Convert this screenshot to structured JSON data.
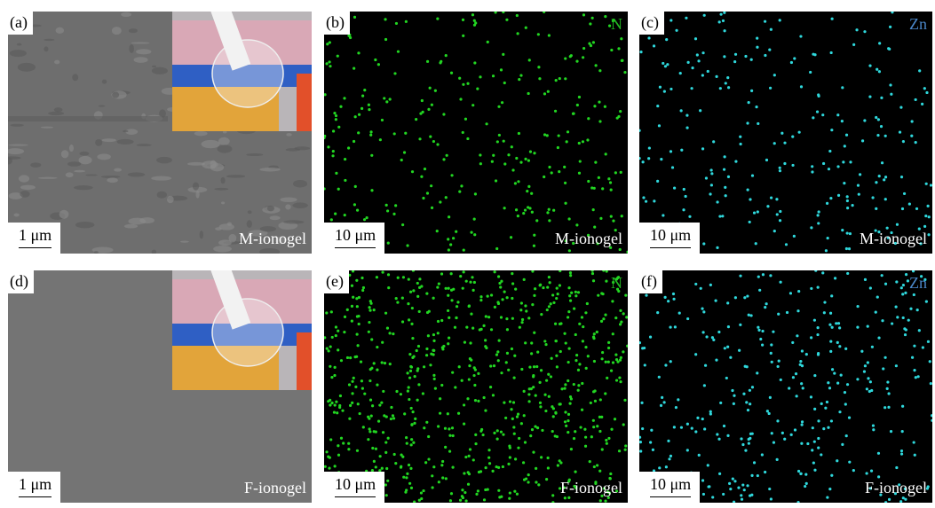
{
  "panels": [
    {
      "label": "(a)",
      "scale_bar": "1 μm",
      "sample": "M-ionogel"
    },
    {
      "label": "(b)",
      "scale_bar": "10 μm",
      "sample": "M-ionogel",
      "element": "N"
    },
    {
      "label": "(c)",
      "scale_bar": "10 μm",
      "sample": "M-ionogel",
      "element": "Zn"
    },
    {
      "label": "(d)",
      "scale_bar": "1 μm",
      "sample": "F-ionogel"
    },
    {
      "label": "(e)",
      "scale_bar": "10 μm",
      "sample": "F-ionogel",
      "element": "N"
    },
    {
      "label": "(f)",
      "scale_bar": "10 μm",
      "sample": "F-ionogel",
      "element": "Zn"
    }
  ]
}
